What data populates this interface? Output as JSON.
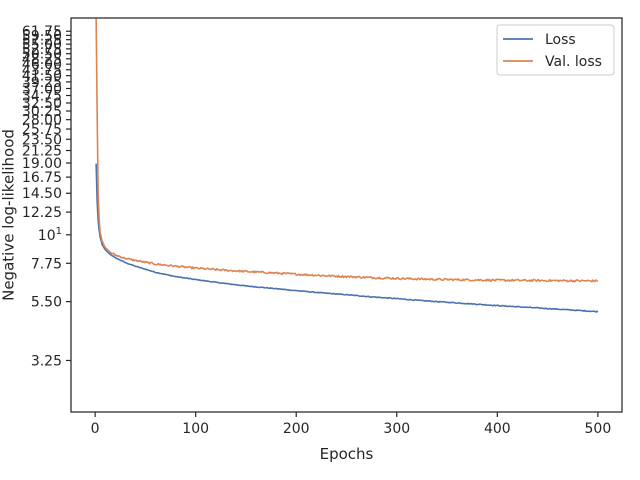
{
  "chart_data": {
    "type": "line",
    "xlabel": "Epochs",
    "ylabel": "Negative log-likelihood",
    "xlim": [
      -24,
      524
    ],
    "ylim": [
      2.05,
      69.5
    ],
    "yscale": "log",
    "grid": false,
    "legend_position": "upper right",
    "x_ticks": [
      0,
      100,
      200,
      300,
      400,
      500
    ],
    "x_tick_labels": [
      "0",
      "100",
      "200",
      "300",
      "400",
      "500"
    ],
    "y_ticks": [
      3.25,
      5.5,
      7.75,
      10,
      12.25,
      14.5,
      16.75,
      19.0,
      21.25,
      23.5,
      25.75,
      28.0,
      30.25,
      32.5,
      34.75,
      37.0,
      39.25,
      41.5,
      43.75,
      46.0,
      48.25,
      50.5,
      52.75,
      55.0,
      57.25,
      59.5,
      61.75
    ],
    "y_tick_labels": [
      "3.25",
      "5.50",
      "7.75",
      "10¹",
      "12.25",
      "14.50",
      "16.75",
      "19.00",
      "21.25",
      "23.50",
      "25.75",
      "28.00",
      "30.25",
      "32.50",
      "34.75",
      "37.00",
      "39.25",
      "41.50",
      "43.75",
      "46.00",
      "48.25",
      "50.50",
      "52.75",
      "55.00",
      "57.25",
      "59.50",
      "61.75"
    ],
    "series": [
      {
        "name": "Loss",
        "color": "#4c72b0",
        "x": [
          1,
          2,
          3,
          4,
          5,
          7,
          10,
          15,
          20,
          30,
          40,
          50,
          60,
          80,
          100,
          125,
          150,
          175,
          200,
          225,
          250,
          275,
          300,
          325,
          350,
          375,
          400,
          425,
          450,
          475,
          500
        ],
        "y": [
          18.9,
          13.5,
          11.4,
          10.4,
          9.8,
          9.15,
          8.75,
          8.4,
          8.15,
          7.8,
          7.55,
          7.35,
          7.15,
          6.88,
          6.7,
          6.5,
          6.33,
          6.2,
          6.07,
          5.95,
          5.85,
          5.74,
          5.65,
          5.55,
          5.47,
          5.39,
          5.31,
          5.24,
          5.17,
          5.1,
          5.03
        ],
        "noise": 0.02
      },
      {
        "name": "Val. loss",
        "color": "#dd8452",
        "x": [
          1,
          2,
          3,
          4,
          5,
          7,
          10,
          15,
          20,
          30,
          40,
          50,
          60,
          80,
          100,
          125,
          150,
          175,
          200,
          225,
          250,
          275,
          300,
          325,
          350,
          375,
          400,
          425,
          450,
          475,
          500
        ],
        "y": [
          69.0,
          30.0,
          14.5,
          11.5,
          10.2,
          9.4,
          8.9,
          8.55,
          8.35,
          8.1,
          7.95,
          7.82,
          7.7,
          7.55,
          7.42,
          7.3,
          7.2,
          7.12,
          7.03,
          6.95,
          6.88,
          6.82,
          6.77,
          6.73,
          6.7,
          6.68,
          6.66,
          6.65,
          6.64,
          6.63,
          6.62
        ],
        "noise": 0.06
      }
    ]
  }
}
